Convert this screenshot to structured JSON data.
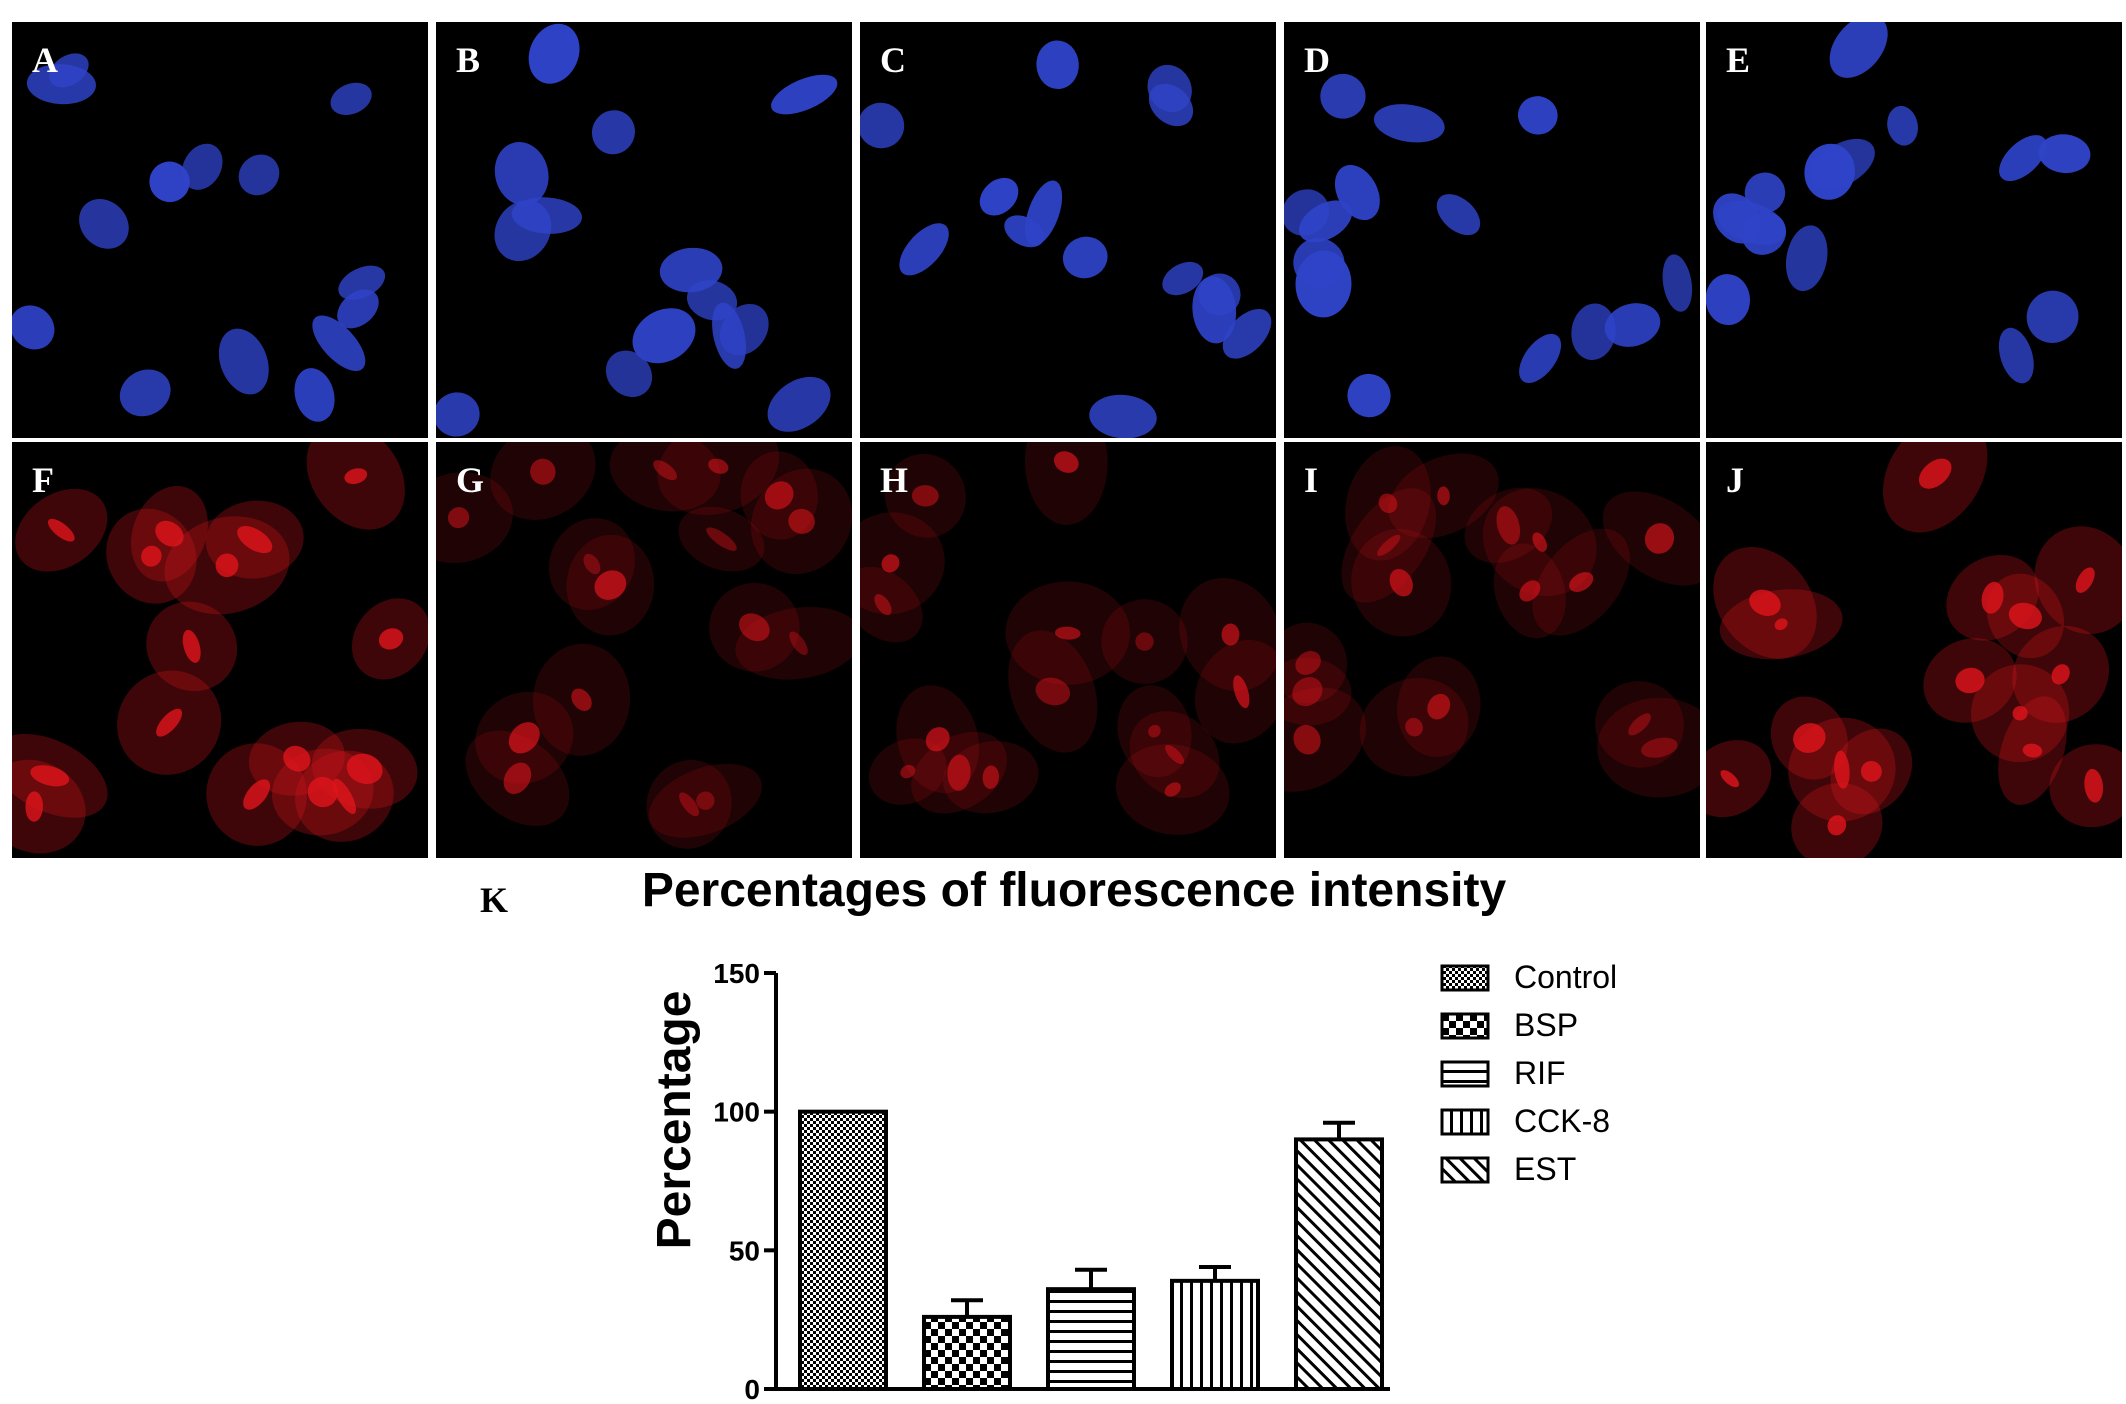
{
  "panels": [
    {
      "label": "A",
      "stain": "blue"
    },
    {
      "label": "B",
      "stain": "blue"
    },
    {
      "label": "C",
      "stain": "blue"
    },
    {
      "label": "D",
      "stain": "blue"
    },
    {
      "label": "E",
      "stain": "blue"
    },
    {
      "label": "F",
      "stain": "red"
    },
    {
      "label": "G",
      "stain": "red"
    },
    {
      "label": "H",
      "stain": "red"
    },
    {
      "label": "I",
      "stain": "red"
    },
    {
      "label": "J",
      "stain": "red"
    }
  ],
  "colors": {
    "blue_stain": "#2f43c8",
    "red_stain": "#e0141c",
    "background": "#000000",
    "bars": "#000000"
  },
  "chart_data": {
    "type": "bar",
    "panel_label": "K",
    "title": "Percentages of fluorescence intensity",
    "xlabel": "",
    "ylabel": "Percentage",
    "ylim": [
      0,
      150
    ],
    "yticks": [
      0,
      50,
      100,
      150
    ],
    "categories": [
      "Control",
      "BSP",
      "RIF",
      "CCK-8",
      "EST"
    ],
    "values": [
      100,
      26,
      36,
      39,
      90
    ],
    "errors": [
      0,
      6,
      7,
      5,
      6
    ],
    "patterns": [
      "fine-checker",
      "large-checker",
      "horizontal-lines",
      "vertical-lines",
      "diagonal-lines"
    ],
    "legend": {
      "position": "right",
      "entries": [
        "Control",
        "BSP",
        "RIF",
        "CCK-8",
        "EST"
      ]
    },
    "grid": false
  }
}
